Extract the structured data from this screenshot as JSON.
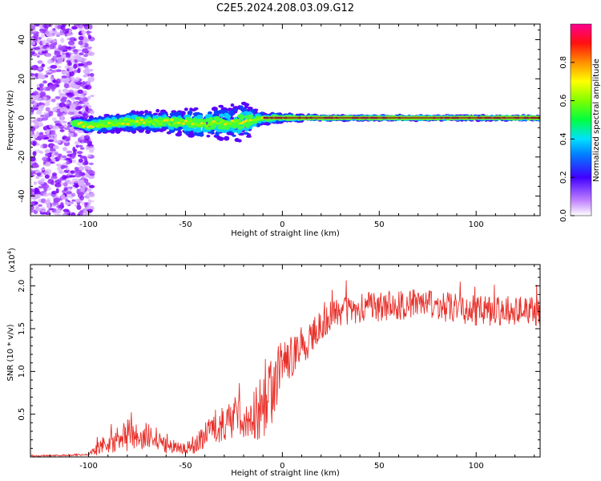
{
  "title": "C2E5.2024.208.03.09.G12",
  "chart_data": [
    {
      "type": "heatmap",
      "xlabel": "Height of straight line (km)",
      "ylabel": "Frequency (Hz)",
      "xlim": [
        -130,
        133
      ],
      "ylim": [
        -50,
        48
      ],
      "xticks": [
        -100,
        -50,
        0,
        50,
        100
      ],
      "yticks": [
        -40,
        -20,
        0,
        20,
        40
      ],
      "colorbar": {
        "label": "Normalized spectral amplitude",
        "range": [
          0,
          1
        ],
        "ticks": [
          "0.0",
          "0.2",
          "0.4",
          "0.6",
          "0.8"
        ]
      },
      "ridge": {
        "x": [
          -120,
          -100,
          -80,
          -60,
          -40,
          -20,
          -10,
          0,
          20,
          50,
          100,
          133
        ],
        "center": [
          0,
          -4,
          -2,
          -2,
          -3,
          -2,
          0,
          0,
          0,
          0,
          0,
          0
        ],
        "halfwidth": [
          0,
          4,
          5,
          6,
          8,
          10,
          3,
          2,
          1,
          1,
          1,
          1
        ]
      }
    },
    {
      "type": "line",
      "xlabel": "Height of straight line (km)",
      "ylabel": "SNR (10 * v/v)",
      "scale_note": "(x10^4)",
      "scale_base": "(x10",
      "scale_exp": "4",
      "scale_close": ")",
      "xlim": [
        -130,
        133
      ],
      "ylim": [
        0,
        22500
      ],
      "xticks": [
        -100,
        -50,
        0,
        50,
        100
      ],
      "yticks": [
        5000,
        10000,
        15000,
        20000
      ],
      "ytick_labels": [
        "0.5",
        "1.0",
        "1.5",
        "2.0"
      ],
      "series": [
        {
          "color": "#e8302a",
          "x": [
            -130,
            -110,
            -100,
            -95,
            -92,
            -90,
            -85,
            -80,
            -75,
            -70,
            -65,
            -60,
            -55,
            -50,
            -45,
            -40,
            -35,
            -30,
            -25,
            -20,
            -15,
            -10,
            -5,
            0,
            5,
            10,
            15,
            20,
            25,
            30,
            40,
            50,
            60,
            70,
            80,
            90,
            100,
            110,
            120,
            133
          ],
          "mean": [
            100,
            200,
            300,
            1000,
            1800,
            1500,
            2000,
            2500,
            2200,
            2300,
            2000,
            1600,
            1200,
            1000,
            1300,
            2500,
            3500,
            4000,
            4500,
            4500,
            5000,
            6000,
            8000,
            11000,
            12000,
            12500,
            14000,
            15500,
            16500,
            17000,
            17300,
            17600,
            17800,
            18000,
            17600,
            17400,
            17100,
            17000,
            17200,
            17000
          ],
          "amp": [
            80,
            100,
            150,
            800,
            1200,
            1000,
            1500,
            2000,
            1800,
            1800,
            1500,
            1200,
            1000,
            800,
            1000,
            1500,
            2000,
            2200,
            2500,
            2500,
            3000,
            4500,
            4000,
            3000,
            2500,
            2000,
            2000,
            1800,
            1800,
            1800,
            1800,
            1800,
            1800,
            1800,
            1800,
            1800,
            1800,
            1800,
            1800,
            1800
          ]
        }
      ]
    }
  ]
}
